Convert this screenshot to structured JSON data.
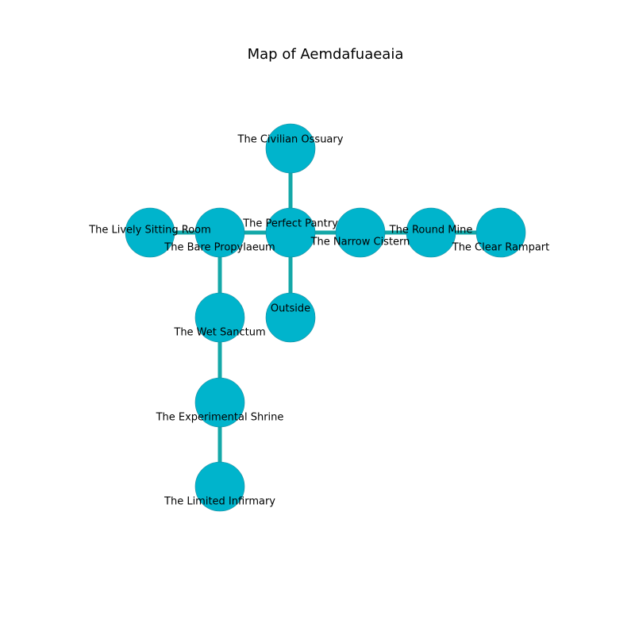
{
  "title": "Map of Aemdafuaeaia",
  "colors": {
    "node_fill": "#00b4cc",
    "node_stroke": "#1a8a9c",
    "edge": "#14a8a8",
    "text": "#000000"
  },
  "rooms": [
    {
      "id": "civilian-ossuary",
      "label": "The Civilian Ossuary"
    },
    {
      "id": "lively-sitting-room",
      "label": "The Lively Sitting Room"
    },
    {
      "id": "bare-propylaeum",
      "label": "The Bare Propylaeum"
    },
    {
      "id": "perfect-pantry",
      "label": "The Perfect Pantry"
    },
    {
      "id": "narrow-cistern",
      "label": "The Narrow Cistern"
    },
    {
      "id": "round-mine",
      "label": "The Round Mine"
    },
    {
      "id": "clear-rampart",
      "label": "The Clear Rampart"
    },
    {
      "id": "wet-sanctum",
      "label": "The Wet Sanctum"
    },
    {
      "id": "outside",
      "label": "Outside"
    },
    {
      "id": "experimental-shrine",
      "label": "The Experimental Shrine"
    },
    {
      "id": "limited-infirmary",
      "label": "The Limited Infirmary"
    }
  ],
  "connections": [
    [
      "civilian-ossuary",
      "perfect-pantry"
    ],
    [
      "lively-sitting-room",
      "bare-propylaeum"
    ],
    [
      "bare-propylaeum",
      "perfect-pantry"
    ],
    [
      "perfect-pantry",
      "narrow-cistern"
    ],
    [
      "narrow-cistern",
      "round-mine"
    ],
    [
      "round-mine",
      "clear-rampart"
    ],
    [
      "perfect-pantry",
      "outside"
    ],
    [
      "bare-propylaeum",
      "wet-sanctum"
    ],
    [
      "wet-sanctum",
      "experimental-shrine"
    ],
    [
      "experimental-shrine",
      "limited-infirmary"
    ]
  ]
}
